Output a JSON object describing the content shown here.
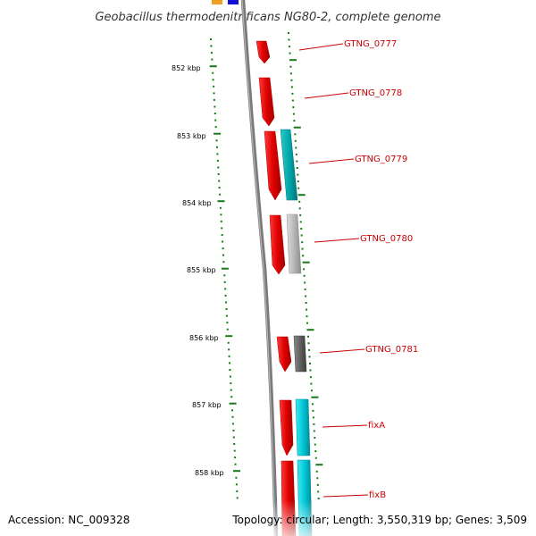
{
  "title": "Geobacillus thermodenitrificans NG80-2, complete genome",
  "accession": "Accession: NC_009328",
  "topology": "Topology: circular; Length: 3,550,319 bp; Genes: 3,509",
  "ruler": {
    "labels": [
      "852 kbp",
      "853 kbp",
      "854 kbp",
      "855 kbp",
      "856 kbp",
      "857 kbp",
      "858 kbp"
    ],
    "tick_color": "#1a7a1a"
  },
  "genes": [
    {
      "name": "GTNG_0777"
    },
    {
      "name": "GTNG_0778"
    },
    {
      "name": "GTNG_0779"
    },
    {
      "name": "GTNG_0780"
    },
    {
      "name": "GTNG_0781"
    },
    {
      "name": "fixA"
    },
    {
      "name": "fixB"
    }
  ],
  "colors": {
    "cds_forward": "#e00000",
    "label": "#cc0000",
    "backbone": "#7a7a7a",
    "cyan_feature": "#00c8d8",
    "grey_feature": "#b0b0b0",
    "dark_feature": "#606060",
    "orange_feature": "#f0a020",
    "blue_feature": "#1010d0"
  }
}
